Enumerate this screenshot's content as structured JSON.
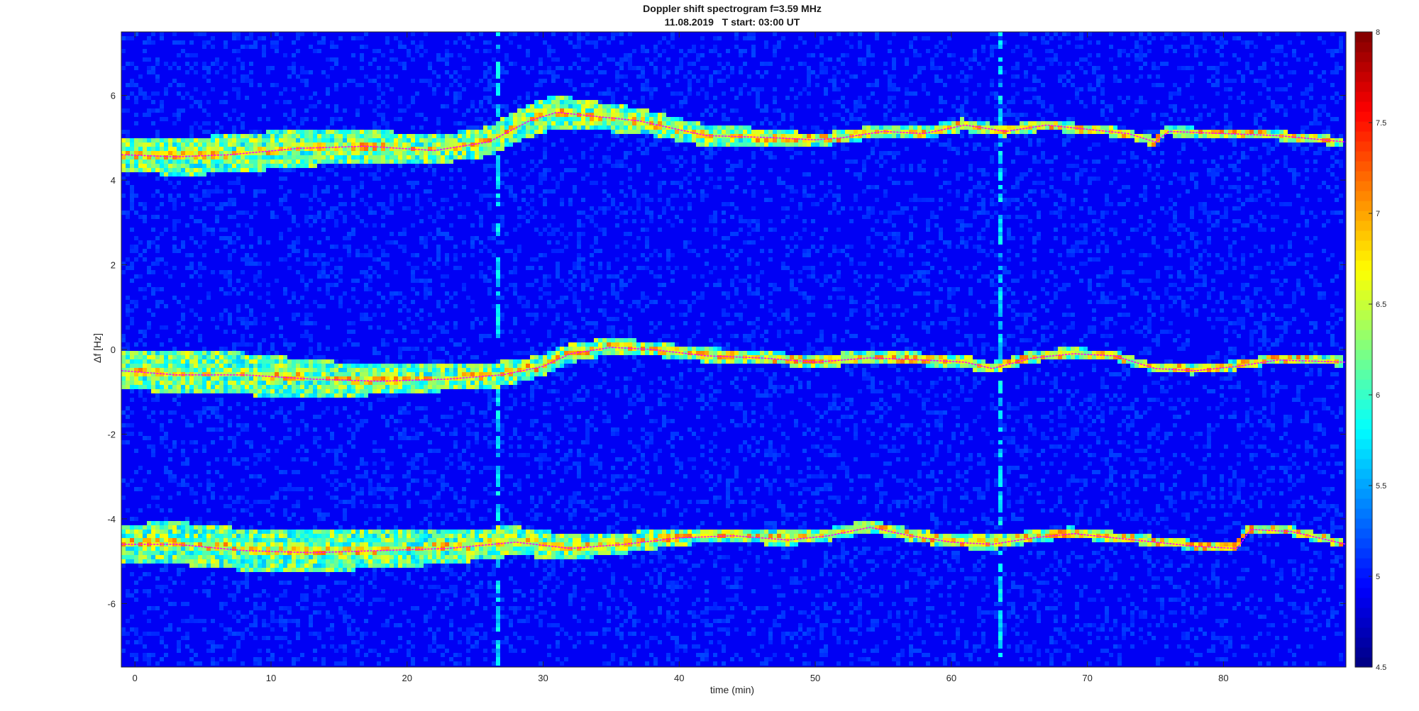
{
  "chart_data": {
    "type": "heatmap",
    "title": "Doppler shift spectrogram f=3.59 MHz",
    "subtitle": "11.08.2019   T start: 03:00 UT",
    "xlabel": "time (min)",
    "ylabel": "Δf [Hz]",
    "xlim": [
      -1,
      89
    ],
    "ylim": [
      -7.5,
      7.5
    ],
    "xticks": [
      0,
      10,
      20,
      30,
      40,
      50,
      60,
      70,
      80
    ],
    "yticks": [
      -6,
      -4,
      -2,
      0,
      2,
      4,
      6
    ],
    "colorbar": {
      "clim": [
        4.5,
        8
      ],
      "ticks": [
        4.5,
        5,
        5.5,
        6,
        6.5,
        7,
        7.5,
        8
      ],
      "colormap": "jet"
    },
    "grid": false,
    "background_level": 4.9,
    "traces": [
      {
        "band": "upper",
        "x": [
          -1,
          3,
          7,
          12,
          17,
          22,
          26,
          29,
          31,
          34,
          37,
          42,
          47,
          50,
          52,
          55,
          58,
          61,
          64,
          67,
          70,
          73,
          75,
          76,
          80,
          84,
          89
        ],
        "y": [
          4.6,
          4.55,
          4.6,
          4.75,
          4.8,
          4.7,
          4.9,
          5.4,
          5.6,
          5.5,
          5.4,
          5.05,
          5.0,
          4.95,
          5.0,
          5.15,
          5.1,
          5.3,
          5.15,
          5.3,
          5.2,
          5.1,
          4.9,
          5.15,
          5.1,
          5.05,
          4.9
        ],
        "band_width": [
          0.35,
          0.4,
          0.4,
          0.4,
          0.35,
          0.3,
          0.3,
          0.35,
          0.35,
          0.3,
          0.25,
          0.2,
          0.15,
          0.1,
          0.1,
          0.1,
          0.1,
          0.1,
          0.08,
          0.08,
          0.06,
          0.06,
          0.06,
          0.06,
          0.06,
          0.06,
          0.06
        ]
      },
      {
        "band": "middle",
        "x": [
          -1,
          3,
          8,
          13,
          18,
          23,
          27,
          30,
          32,
          35,
          38,
          42,
          46,
          50,
          54,
          58,
          61,
          63,
          66,
          69,
          72,
          75,
          78,
          81,
          84,
          89
        ],
        "y": [
          -0.5,
          -0.6,
          -0.6,
          -0.7,
          -0.75,
          -0.7,
          -0.6,
          -0.4,
          -0.1,
          0.05,
          0.0,
          -0.15,
          -0.2,
          -0.3,
          -0.2,
          -0.25,
          -0.3,
          -0.45,
          -0.2,
          -0.1,
          -0.15,
          -0.45,
          -0.5,
          -0.4,
          -0.25,
          -0.3
        ],
        "band_width": [
          0.35,
          0.45,
          0.45,
          0.4,
          0.3,
          0.25,
          0.25,
          0.2,
          0.18,
          0.15,
          0.12,
          0.12,
          0.1,
          0.1,
          0.1,
          0.1,
          0.1,
          0.08,
          0.08,
          0.08,
          0.06,
          0.06,
          0.06,
          0.06,
          0.06,
          0.06
        ]
      },
      {
        "band": "lower",
        "x": [
          -1,
          3,
          8,
          13,
          18,
          23,
          28,
          32,
          36,
          40,
          44,
          48,
          51,
          54,
          57,
          60,
          63,
          66,
          69,
          72,
          75,
          78,
          81,
          82,
          85,
          89
        ],
        "y": [
          -4.6,
          -4.6,
          -4.75,
          -4.8,
          -4.75,
          -4.7,
          -4.55,
          -4.7,
          -4.6,
          -4.45,
          -4.4,
          -4.5,
          -4.4,
          -4.2,
          -4.4,
          -4.55,
          -4.6,
          -4.45,
          -4.35,
          -4.45,
          -4.55,
          -4.65,
          -4.7,
          -4.25,
          -4.3,
          -4.6
        ],
        "band_width": [
          0.4,
          0.45,
          0.45,
          0.45,
          0.4,
          0.35,
          0.3,
          0.25,
          0.2,
          0.15,
          0.12,
          0.12,
          0.1,
          0.1,
          0.1,
          0.1,
          0.12,
          0.1,
          0.08,
          0.08,
          0.06,
          0.06,
          0.06,
          0.06,
          0.06,
          0.06
        ]
      }
    ],
    "vertical_streaks_x": [
      26.5,
      63.5
    ],
    "trace_line_color": "#ff00ff"
  }
}
